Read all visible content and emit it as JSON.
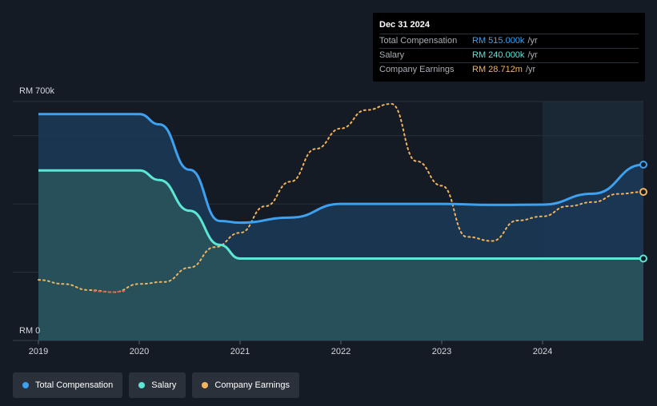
{
  "tooltip": {
    "date": "Dec 31 2024",
    "rows": [
      {
        "label": "Total Compensation",
        "value": "RM 515.000k",
        "unit": "/yr",
        "color": "#3ea1f0"
      },
      {
        "label": "Salary",
        "value": "RM 240.000k",
        "unit": "/yr",
        "color": "#5ce6d4"
      },
      {
        "label": "Company Earnings",
        "value": "RM 28.712m",
        "unit": "/yr",
        "color": "#f2b45f"
      }
    ]
  },
  "legend": [
    {
      "label": "Total Compensation",
      "color": "#3ea1f0"
    },
    {
      "label": "Salary",
      "color": "#5ce6d4"
    },
    {
      "label": "Company Earnings",
      "color": "#f2b45f"
    }
  ],
  "chart_data": {
    "type": "line",
    "y_top_label": "RM 700k",
    "y_bottom_label": "RM 0",
    "ylim": [
      0,
      700
    ],
    "xlim": [
      2019.0,
      2025.0
    ],
    "x_ticks": [
      "2019",
      "2020",
      "2021",
      "2022",
      "2023",
      "2024"
    ],
    "x_tick_values": [
      2019,
      2020,
      2021,
      2022,
      2023,
      2024
    ],
    "grid": true,
    "series": [
      {
        "name": "Total Compensation",
        "color": "#3ea1f0",
        "style": "solid",
        "filled": true,
        "x": [
          2019.0,
          2020.0,
          2020.2,
          2020.5,
          2020.8,
          2021.0,
          2021.5,
          2022.0,
          2023.0,
          2023.5,
          2024.0,
          2024.5,
          2025.0
        ],
        "y": [
          663,
          663,
          633,
          500,
          350,
          345,
          360,
          400,
          400,
          397,
          398,
          430,
          515
        ]
      },
      {
        "name": "Salary",
        "color": "#5ce6d4",
        "style": "solid",
        "filled": true,
        "x": [
          2019.0,
          2020.0,
          2020.2,
          2020.5,
          2020.8,
          2021.0,
          2022.0,
          2023.0,
          2024.0,
          2025.0
        ],
        "y": [
          498,
          498,
          470,
          380,
          280,
          240,
          240,
          240,
          240,
          240
        ]
      },
      {
        "name": "Company Earnings",
        "color": "#f2b45f",
        "style": "dotted",
        "filled": false,
        "negative_color": "#e05a4f",
        "x": [
          2019.0,
          2019.25,
          2019.5,
          2019.75,
          2020.0,
          2020.25,
          2020.5,
          2020.75,
          2021.0,
          2021.25,
          2021.5,
          2021.75,
          2022.0,
          2022.25,
          2022.5,
          2022.75,
          2023.0,
          2023.25,
          2023.5,
          2023.75,
          2024.0,
          2024.25,
          2024.5,
          2024.75,
          2025.0
        ]
      }
    ]
  }
}
